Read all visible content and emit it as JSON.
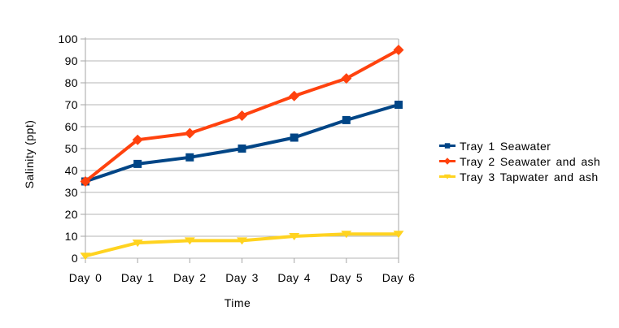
{
  "chart_data": {
    "type": "line",
    "title": "",
    "xlabel": "Time",
    "ylabel": "Salinity (ppt)",
    "ylim": [
      0,
      100
    ],
    "ytick_step": 10,
    "grid": "horizontal",
    "legend_position": "right",
    "categories": [
      "Day 0",
      "Day 1",
      "Day 2",
      "Day 3",
      "Day 4",
      "Day 5",
      "Day 6"
    ],
    "series": [
      {
        "name": "Tray 1 Seawater",
        "color": "#004586",
        "marker": "square",
        "values": [
          35,
          43,
          46,
          50,
          55,
          63,
          70
        ]
      },
      {
        "name": "Tray 2 Seawater and ash",
        "color": "#FF420E",
        "marker": "diamond",
        "values": [
          35,
          54,
          57,
          65,
          74,
          82,
          95
        ]
      },
      {
        "name": "Tray 3 Tapwater and ash",
        "color": "#FFD320",
        "marker": "triangle-down",
        "values": [
          1,
          7,
          8,
          8,
          10,
          11,
          11
        ]
      }
    ],
    "colors": {
      "gridline": "#b5b5b5",
      "axis": "#a6a6a6",
      "text": "#000000",
      "background": "#ffffff"
    }
  }
}
